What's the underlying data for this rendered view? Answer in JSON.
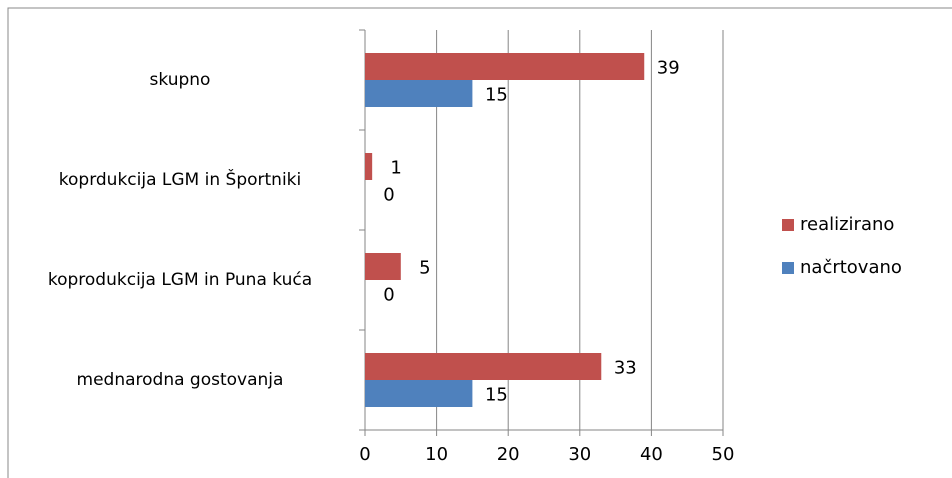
{
  "chart_data": {
    "type": "hbar",
    "categories": [
      "skupno",
      "koprdukcija LGM in Športniki",
      "koprodukcija LGM in Puna kuća",
      "mednarodna gostovanja"
    ],
    "series": [
      {
        "name": "realizirano",
        "color": "#c0504d",
        "values": [
          39,
          1,
          5,
          33
        ]
      },
      {
        "name": "načrtovano",
        "color": "#4f81bd",
        "values": [
          15,
          0,
          0,
          15
        ]
      }
    ],
    "xlim": [
      0,
      50
    ],
    "xticks": [
      0,
      10,
      20,
      30,
      40,
      50
    ],
    "grid": true,
    "legend": "right"
  }
}
